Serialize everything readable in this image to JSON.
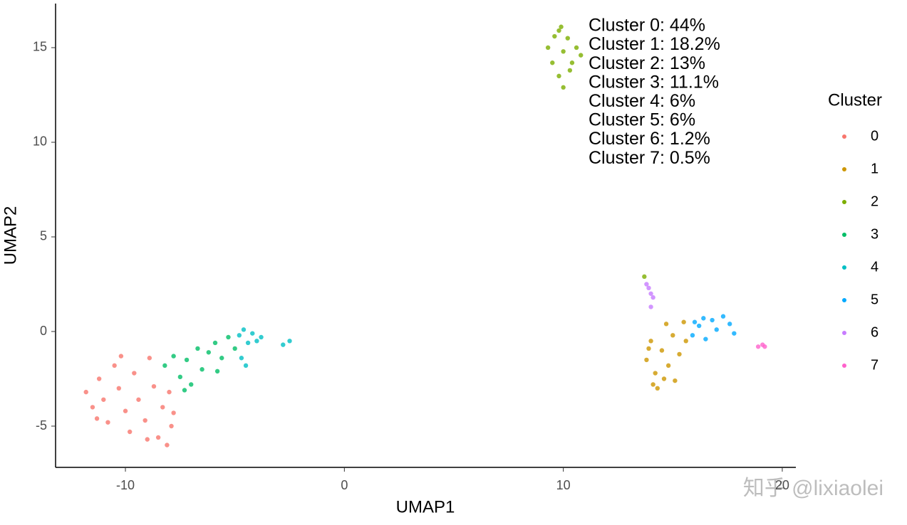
{
  "chart_data": {
    "type": "scatter",
    "xlabel": "UMAP1",
    "ylabel": "UMAP2",
    "xlim": [
      -13.19,
      20.62
    ],
    "ylim": [
      -7.18,
      17.33
    ],
    "xticks": [
      -10,
      0,
      10,
      20
    ],
    "yticks": [
      -5,
      0,
      5,
      10,
      15
    ],
    "grid": false,
    "legend_title": "Cluster",
    "legend_position": "right",
    "annotations": [
      "Cluster 0: 44%",
      "Cluster 1: 18.2%",
      "Cluster 2: 13%",
      "Cluster 3: 11.1%",
      "Cluster 4: 6%",
      "Cluster 5: 6%",
      "Cluster 6: 1.2%",
      "Cluster 7: 0.5%"
    ],
    "watermark": "知乎 @lixiaolei",
    "series": [
      {
        "name": "0",
        "color": "#F8766D",
        "x": [
          -11.8,
          -11.5,
          -11.2,
          -11.0,
          -10.8,
          -10.5,
          -10.3,
          -10.0,
          -9.8,
          -9.6,
          -9.4,
          -9.1,
          -8.9,
          -8.7,
          -8.5,
          -8.3,
          -8.0,
          -7.9,
          -8.1,
          -10.2,
          -11.3,
          -9.0,
          -7.8
        ],
        "values": [
          -3.2,
          -4.0,
          -2.5,
          -3.6,
          -4.8,
          -1.8,
          -3.0,
          -4.2,
          -5.3,
          -2.2,
          -3.6,
          -4.7,
          -1.4,
          -2.9,
          -5.6,
          -4.0,
          -3.2,
          -5.0,
          -6.0,
          -1.3,
          -4.6,
          -5.7,
          -4.3
        ]
      },
      {
        "name": "1",
        "color": "#CD9600",
        "x": [
          13.8,
          14.0,
          14.2,
          14.3,
          14.5,
          14.7,
          14.8,
          15.0,
          15.1,
          15.3,
          15.5,
          14.1,
          13.9,
          14.6,
          15.6
        ],
        "values": [
          -1.5,
          -0.5,
          -2.2,
          -3.0,
          -1.0,
          0.4,
          -1.8,
          -0.2,
          -2.6,
          -1.2,
          0.5,
          -2.8,
          -0.9,
          -2.5,
          -0.5
        ]
      },
      {
        "name": "2",
        "color": "#7CAE00",
        "x": [
          9.3,
          9.5,
          9.6,
          9.8,
          9.9,
          10.0,
          10.2,
          10.4,
          10.6,
          10.8,
          10.0,
          9.8,
          10.3,
          13.7
        ],
        "values": [
          15.0,
          14.2,
          15.6,
          13.5,
          16.1,
          14.8,
          15.5,
          14.2,
          15.0,
          14.6,
          12.9,
          15.9,
          13.8,
          2.9
        ]
      },
      {
        "name": "3",
        "color": "#00BE67",
        "x": [
          -8.2,
          -7.8,
          -7.5,
          -7.2,
          -7.0,
          -6.7,
          -6.5,
          -6.2,
          -5.9,
          -5.6,
          -5.3,
          -5.0,
          -7.3,
          -5.8
        ],
        "values": [
          -1.8,
          -1.3,
          -2.4,
          -1.5,
          -2.8,
          -0.9,
          -2.0,
          -1.1,
          -0.6,
          -1.4,
          -0.3,
          -0.9,
          -3.1,
          -2.1
        ]
      },
      {
        "name": "4",
        "color": "#00BFC4",
        "x": [
          -4.8,
          -4.6,
          -4.4,
          -4.2,
          -4.0,
          -3.8,
          -4.5,
          -4.7,
          -2.8,
          -2.5
        ],
        "values": [
          -0.2,
          0.1,
          -0.6,
          -0.1,
          -0.5,
          -0.3,
          -1.8,
          -1.4,
          -0.7,
          -0.5
        ]
      },
      {
        "name": "5",
        "color": "#00A9FF",
        "x": [
          15.9,
          16.2,
          16.5,
          16.8,
          17.0,
          17.3,
          17.6,
          17.8,
          16.4,
          16.0
        ],
        "values": [
          -0.2,
          0.3,
          -0.4,
          0.6,
          0.1,
          0.8,
          0.4,
          -0.1,
          0.7,
          0.5
        ]
      },
      {
        "name": "6",
        "color": "#C77CFF",
        "x": [
          13.9,
          14.0,
          14.1,
          13.8,
          14.0
        ],
        "values": [
          2.3,
          2.0,
          1.8,
          2.5,
          1.3
        ]
      },
      {
        "name": "7",
        "color": "#FF61CC",
        "x": [
          18.9,
          19.1,
          19.2
        ],
        "values": [
          -0.8,
          -0.7,
          -0.8
        ]
      }
    ]
  }
}
